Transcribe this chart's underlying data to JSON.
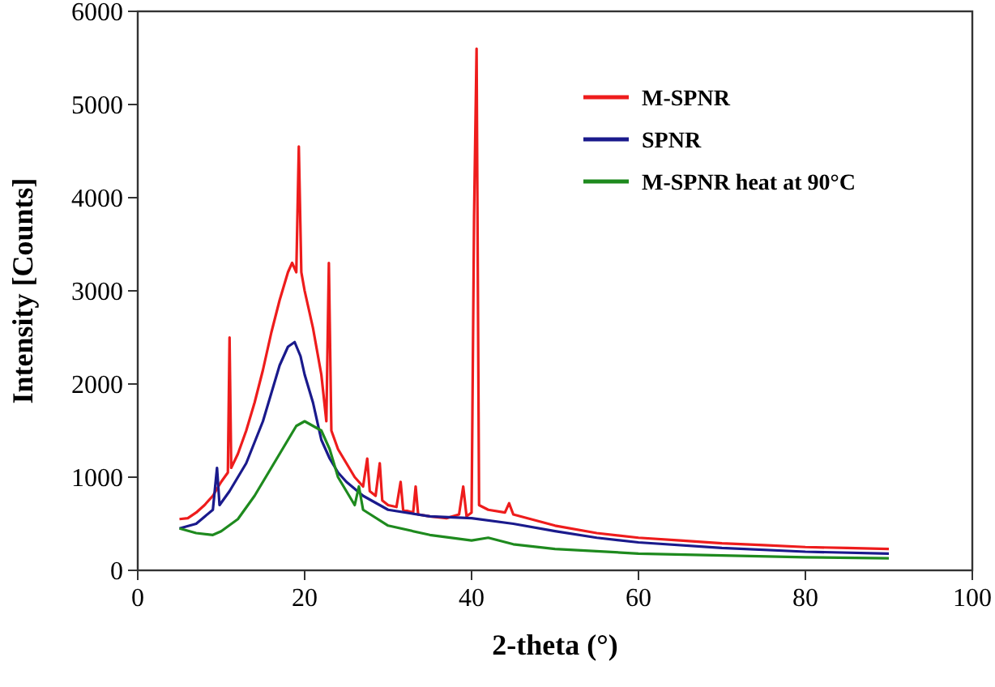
{
  "chart_data": {
    "type": "line",
    "xlabel": "2-theta (°)",
    "ylabel": "Intensity [Counts]",
    "xlim": [
      0,
      100
    ],
    "xticks": [
      0,
      20,
      40,
      60,
      80,
      100
    ],
    "ylim": [
      0,
      6000
    ],
    "yticks": [
      0,
      1000,
      2000,
      3000,
      4000,
      5000,
      6000
    ],
    "legend": "top right",
    "series": [
      {
        "name": "M-SPNR",
        "color": "#ee1c1c",
        "x": [
          5,
          6,
          7,
          8,
          9,
          10,
          10.8,
          11,
          11.2,
          12,
          13,
          14,
          15,
          16,
          17,
          18,
          18.5,
          19,
          19.3,
          19.6,
          20,
          21,
          22,
          22.6,
          22.9,
          23.2,
          24,
          25,
          26,
          27,
          27.5,
          27.8,
          28.5,
          29,
          29.3,
          30,
          31,
          31.5,
          31.8,
          33,
          33.3,
          33.6,
          35,
          37,
          38.5,
          39,
          39.4,
          40,
          40.3,
          40.6,
          40.9,
          42,
          44,
          44.5,
          45,
          50,
          55,
          60,
          65,
          70,
          75,
          80,
          85,
          90
        ],
        "values": [
          550,
          560,
          620,
          700,
          800,
          950,
          1050,
          2500,
          1100,
          1250,
          1500,
          1800,
          2150,
          2550,
          2900,
          3200,
          3300,
          3200,
          4550,
          3200,
          3000,
          2600,
          2100,
          1600,
          3300,
          1500,
          1300,
          1150,
          1000,
          900,
          1200,
          850,
          800,
          1150,
          750,
          700,
          680,
          950,
          650,
          620,
          900,
          600,
          580,
          560,
          600,
          900,
          580,
          620,
          3800,
          5600,
          700,
          650,
          620,
          720,
          600,
          480,
          400,
          350,
          320,
          290,
          270,
          250,
          240,
          230
        ]
      },
      {
        "name": "SPNR",
        "color": "#1a1a8c",
        "x": [
          5,
          7,
          9,
          9.5,
          9.8,
          11,
          13,
          15,
          17,
          18,
          18.8,
          19.5,
          20,
          21,
          22,
          23,
          24,
          25,
          27,
          30,
          35,
          40,
          45,
          50,
          55,
          60,
          70,
          80,
          90
        ],
        "values": [
          450,
          500,
          650,
          1100,
          700,
          850,
          1150,
          1600,
          2200,
          2400,
          2450,
          2300,
          2100,
          1800,
          1400,
          1200,
          1050,
          950,
          800,
          650,
          580,
          560,
          500,
          420,
          350,
          300,
          240,
          200,
          180
        ]
      },
      {
        "name": "M-SPNR heat at 90°C",
        "color": "#1e8a1e",
        "x": [
          5,
          7,
          9,
          10,
          12,
          14,
          16,
          18,
          19,
          20,
          21,
          22,
          23,
          24,
          25,
          26,
          26.5,
          27,
          30,
          35,
          40,
          42,
          45,
          50,
          60,
          70,
          80,
          90
        ],
        "values": [
          450,
          400,
          380,
          420,
          550,
          800,
          1100,
          1400,
          1550,
          1600,
          1550,
          1500,
          1300,
          1000,
          850,
          700,
          900,
          650,
          480,
          380,
          320,
          350,
          280,
          230,
          180,
          160,
          140,
          130
        ]
      }
    ]
  }
}
